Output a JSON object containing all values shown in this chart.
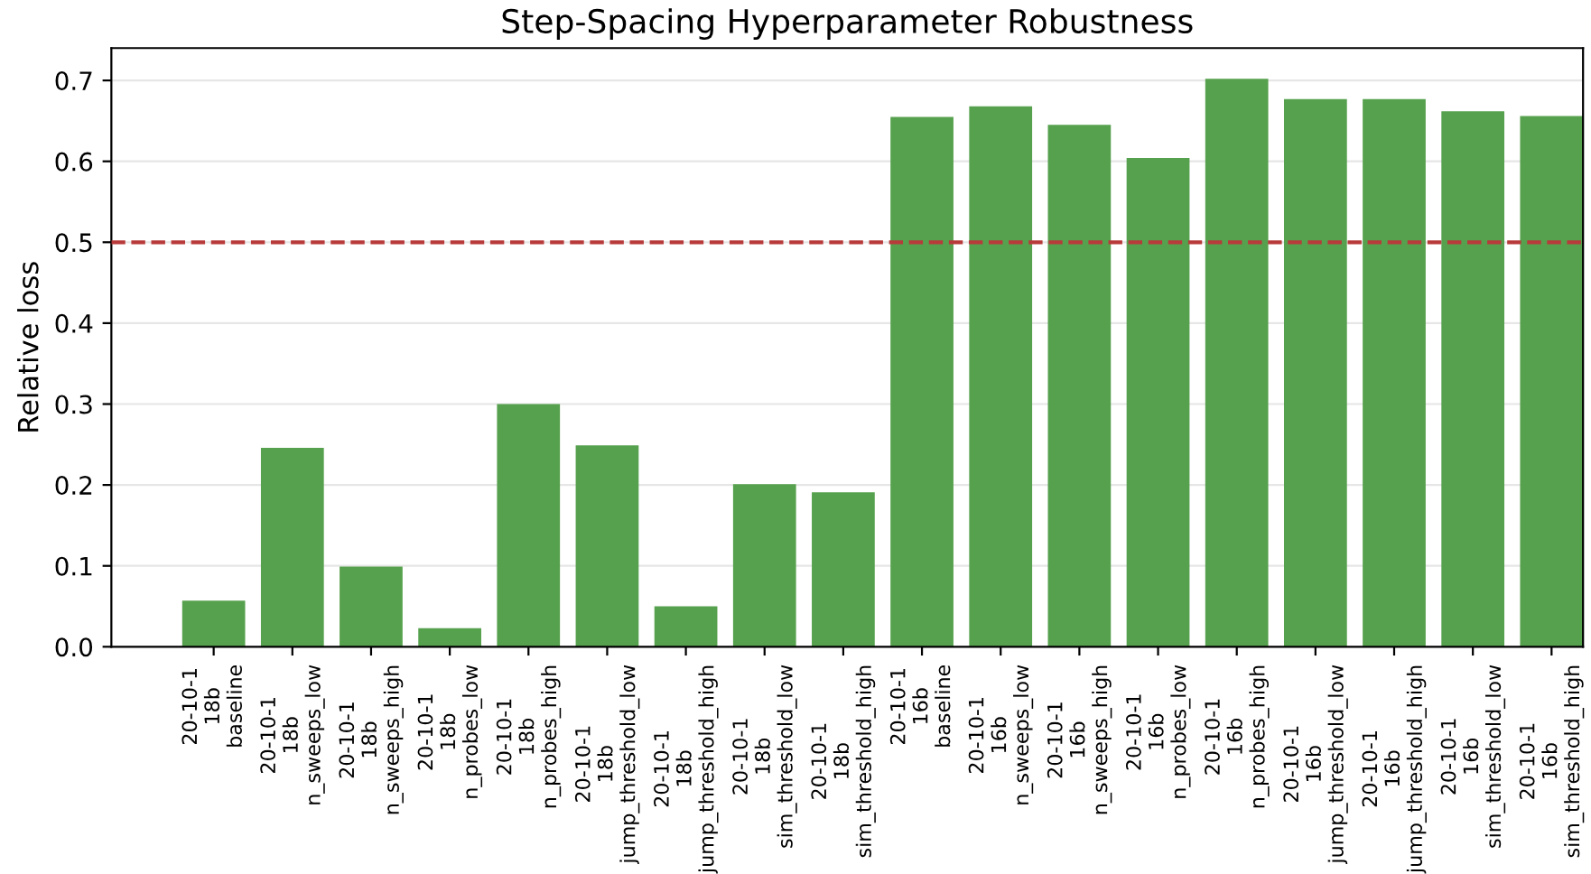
{
  "chart_data": {
    "type": "bar",
    "title": "Step-Spacing Hyperparameter Robustness",
    "ylabel": "Relative loss",
    "categories": [
      "20-10-1\n18b\nbaseline",
      "20-10-1\n18b\nn_sweeps_low",
      "20-10-1\n18b\nn_sweeps_high",
      "20-10-1\n18b\nn_probes_low",
      "20-10-1\n18b\nn_probes_high",
      "20-10-1\n18b\njump_threshold_low",
      "20-10-1\n18b\njump_threshold_high",
      "20-10-1\n18b\nsim_threshold_low",
      "20-10-1\n18b\nsim_threshold_high",
      "20-10-1\n16b\nbaseline",
      "20-10-1\n16b\nn_sweeps_low",
      "20-10-1\n16b\nn_sweeps_high",
      "20-10-1\n16b\nn_probes_low",
      "20-10-1\n16b\nn_probes_high",
      "20-10-1\n16b\njump_threshold_low",
      "20-10-1\n16b\njump_threshold_high",
      "20-10-1\n16b\nsim_threshold_low",
      "20-10-1\n16b\nsim_threshold_high"
    ],
    "values": [
      0.057,
      0.246,
      0.099,
      0.023,
      0.3,
      0.249,
      0.05,
      0.201,
      0.191,
      0.655,
      0.668,
      0.645,
      0.604,
      0.702,
      0.677,
      0.677,
      0.662,
      0.656
    ],
    "color": "#56a14d",
    "ylim": [
      0,
      0.74
    ],
    "yticks": [
      {
        "value": 0,
        "label": "0.0"
      },
      {
        "value": 0.1,
        "label": "0.1"
      },
      {
        "value": 0.2,
        "label": "0.2"
      },
      {
        "value": 0.3,
        "label": "0.3"
      },
      {
        "value": 0.4,
        "label": "0.4"
      },
      {
        "value": 0.5,
        "label": "0.5"
      },
      {
        "value": 0.6,
        "label": "0.6"
      },
      {
        "value": 0.7,
        "label": "0.7"
      }
    ],
    "grid": "y",
    "ref_lines": [
      {
        "axis": "y",
        "value": 0.5,
        "color": "#b83a3a",
        "line_style": "dashed"
      }
    ]
  }
}
